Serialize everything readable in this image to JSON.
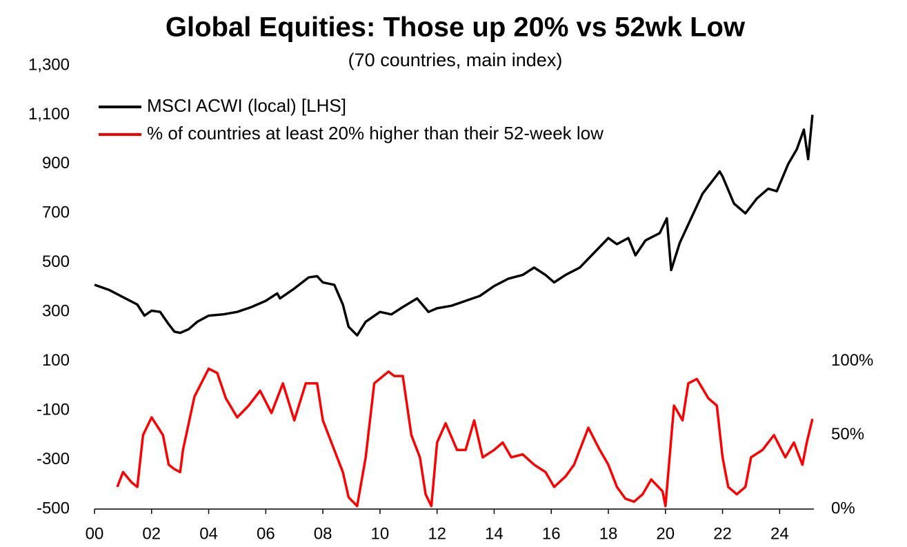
{
  "chart_data": {
    "type": "line",
    "title": "Global Equities: Those up 20% vs 52wk Low",
    "subtitle": "(70 countries, main index)",
    "xlim": [
      2000,
      2025.2
    ],
    "xticks": [
      {
        "value": 2000,
        "label": "00"
      },
      {
        "value": 2002,
        "label": "02"
      },
      {
        "value": 2004,
        "label": "04"
      },
      {
        "value": 2006,
        "label": "06"
      },
      {
        "value": 2008,
        "label": "08"
      },
      {
        "value": 2010,
        "label": "10"
      },
      {
        "value": 2012,
        "label": "12"
      },
      {
        "value": 2014,
        "label": "14"
      },
      {
        "value": 2016,
        "label": "16"
      },
      {
        "value": 2018,
        "label": "18"
      },
      {
        "value": 2020,
        "label": "20"
      },
      {
        "value": 2022,
        "label": "22"
      },
      {
        "value": 2024,
        "label": "24"
      }
    ],
    "ylim": [
      -500,
      1300
    ],
    "yticks": [
      -500,
      -300,
      -100,
      100,
      300,
      500,
      700,
      900,
      {
        "value": 1100,
        "label": "1,100"
      },
      {
        "value": 1300,
        "label": "1,300"
      }
    ],
    "y2lim": [
      0,
      300
    ],
    "y2ticks": [
      {
        "value": 0,
        "label": "0%"
      },
      {
        "value": 50,
        "label": "50%"
      },
      {
        "value": 100,
        "label": "100%"
      }
    ],
    "legend": "upper left",
    "series": [
      {
        "name": "MSCI ACWI (local) [LHS]",
        "color": "#000000",
        "x": [
          2000.0,
          2000.5,
          2001.0,
          2001.5,
          2001.75,
          2002.0,
          2002.3,
          2002.6,
          2002.8,
          2003.0,
          2003.3,
          2003.6,
          2004.0,
          2004.5,
          2005.0,
          2005.5,
          2006.0,
          2006.4,
          2006.5,
          2007.0,
          2007.5,
          2007.8,
          2008.0,
          2008.4,
          2008.7,
          2008.9,
          2009.2,
          2009.5,
          2010.0,
          2010.4,
          2010.8,
          2011.3,
          2011.7,
          2012.0,
          2012.5,
          2013.0,
          2013.5,
          2014.0,
          2014.5,
          2015.0,
          2015.4,
          2015.8,
          2016.1,
          2016.5,
          2017.0,
          2017.5,
          2018.0,
          2018.3,
          2018.7,
          2018.95,
          2019.3,
          2019.8,
          2020.05,
          2020.2,
          2020.5,
          2020.9,
          2021.3,
          2021.9,
          2022.0,
          2022.4,
          2022.8,
          2023.2,
          2023.6,
          2023.9,
          2024.3,
          2024.6,
          2024.85,
          2025.0,
          2025.15
        ],
        "values": [
          410,
          390,
          360,
          330,
          285,
          305,
          300,
          250,
          220,
          215,
          230,
          260,
          285,
          290,
          300,
          320,
          345,
          375,
          355,
          395,
          440,
          445,
          420,
          410,
          330,
          240,
          205,
          260,
          300,
          290,
          320,
          355,
          300,
          315,
          325,
          345,
          365,
          405,
          435,
          450,
          480,
          450,
          420,
          450,
          480,
          540,
          600,
          575,
          600,
          530,
          590,
          620,
          680,
          470,
          580,
          680,
          780,
          870,
          850,
          740,
          700,
          760,
          800,
          790,
          900,
          960,
          1040,
          920,
          1100
        ]
      },
      {
        "name": "% of countries at least 20% higher than their 52-week low",
        "color": "#ff0000",
        "axis": "y2",
        "x": [
          2000.8,
          2001.0,
          2001.3,
          2001.5,
          2001.7,
          2002.0,
          2002.4,
          2002.6,
          2002.8,
          2003.0,
          2003.1,
          2003.5,
          2004.0,
          2004.3,
          2004.6,
          2005.0,
          2005.4,
          2005.8,
          2006.2,
          2006.6,
          2007.0,
          2007.4,
          2007.8,
          2008.0,
          2008.3,
          2008.7,
          2008.9,
          2009.2,
          2009.5,
          2009.8,
          2010.3,
          2010.5,
          2010.8,
          2011.1,
          2011.4,
          2011.6,
          2011.8,
          2012.0,
          2012.3,
          2012.7,
          2013.0,
          2013.3,
          2013.6,
          2014.0,
          2014.3,
          2014.6,
          2015.0,
          2015.4,
          2015.8,
          2016.1,
          2016.5,
          2016.8,
          2017.0,
          2017.3,
          2017.7,
          2018.0,
          2018.3,
          2018.6,
          2018.9,
          2019.2,
          2019.5,
          2019.9,
          2020.0,
          2020.3,
          2020.6,
          2020.8,
          2021.1,
          2021.5,
          2021.8,
          2022.0,
          2022.2,
          2022.5,
          2022.8,
          2023.0,
          2023.4,
          2023.8,
          2024.2,
          2024.5,
          2024.8,
          2024.95,
          2025.15
        ],
        "values": [
          15,
          25,
          18,
          15,
          50,
          62,
          50,
          30,
          27,
          25,
          40,
          76,
          95,
          92,
          75,
          62,
          70,
          80,
          65,
          85,
          60,
          85,
          85,
          60,
          45,
          25,
          8,
          2,
          35,
          85,
          93,
          90,
          90,
          50,
          35,
          10,
          2,
          45,
          58,
          40,
          40,
          60,
          35,
          40,
          45,
          35,
          37,
          30,
          25,
          15,
          22,
          30,
          40,
          55,
          40,
          30,
          15,
          7,
          5,
          10,
          20,
          12,
          2,
          70,
          60,
          85,
          88,
          75,
          70,
          35,
          15,
          10,
          15,
          35,
          40,
          50,
          35,
          45,
          30,
          45,
          61
        ]
      }
    ]
  }
}
